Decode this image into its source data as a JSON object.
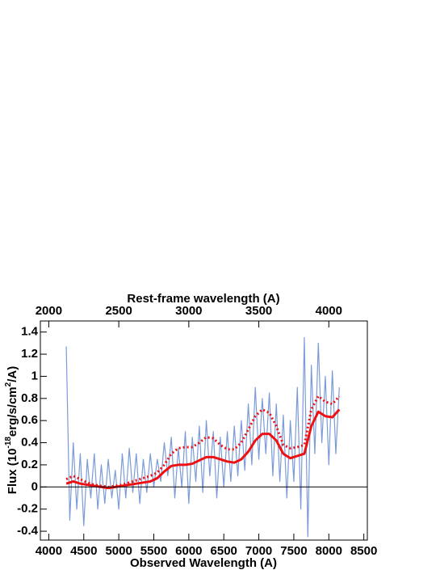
{
  "chart_data": {
    "type": "line",
    "xlabel": "Observed Wavelength (A)",
    "ylabel_parts": [
      "Flux (10",
      "-18",
      "erg/s/cm",
      "2",
      "/A)"
    ],
    "x2label": "Rest-frame wavelength (A)",
    "xlim": [
      3880,
      8550
    ],
    "xticks": [
      4000,
      4500,
      5000,
      5500,
      6000,
      6500,
      7000,
      7500,
      8000,
      8500
    ],
    "x2lim": [
      1940,
      4275
    ],
    "x2ticks": [
      2000,
      2500,
      3000,
      3500,
      4000
    ],
    "ylim": [
      -0.48,
      1.5
    ],
    "yticks": [
      -0.4,
      -0.2,
      0,
      0.2,
      0.4,
      0.6,
      0.8,
      1,
      1.2,
      1.4
    ],
    "zero_line": 0,
    "series": [
      {
        "color": "#7b9bd8",
        "style": "solid",
        "x": [
          4250,
          4300,
          4350,
          4400,
          4450,
          4500,
          4550,
          4600,
          4650,
          4700,
          4750,
          4800,
          4850,
          4900,
          4950,
          5000,
          5050,
          5100,
          5150,
          5200,
          5250,
          5300,
          5350,
          5400,
          5450,
          5500,
          5550,
          5600,
          5650,
          5700,
          5750,
          5800,
          5850,
          5900,
          5950,
          6000,
          6050,
          6100,
          6150,
          6200,
          6250,
          6300,
          6350,
          6400,
          6450,
          6500,
          6550,
          6600,
          6650,
          6700,
          6750,
          6800,
          6850,
          6900,
          6950,
          7000,
          7050,
          7100,
          7150,
          7200,
          7250,
          7300,
          7350,
          7400,
          7450,
          7500,
          7550,
          7600,
          7650,
          7700,
          7750,
          7800,
          7850,
          7900,
          7950,
          8000,
          8050,
          8100,
          8150
        ],
        "values": [
          1.27,
          -0.3,
          0.4,
          -0.2,
          0.3,
          -0.35,
          0.25,
          -0.1,
          0.3,
          -0.2,
          0.2,
          -0.15,
          0.25,
          -0.1,
          0.15,
          -0.2,
          0.3,
          -0.1,
          0.35,
          -0.05,
          0.3,
          -0.15,
          0.25,
          -0.05,
          0.3,
          0.0,
          0.25,
          0.05,
          0.4,
          0.1,
          0.45,
          -0.1,
          0.35,
          0.0,
          0.5,
          -0.15,
          0.45,
          0.05,
          0.55,
          -0.05,
          0.6,
          0.1,
          0.5,
          -0.1,
          0.45,
          0.0,
          0.5,
          0.05,
          0.55,
          0.1,
          0.6,
          0.15,
          0.75,
          0.2,
          0.9,
          0.25,
          0.8,
          0.3,
          0.85,
          0.1,
          0.75,
          0.05,
          0.65,
          -0.1,
          0.6,
          0.05,
          0.9,
          -0.2,
          1.35,
          -0.45,
          1.1,
          0.3,
          1.3,
          0.4,
          1.0,
          0.2,
          1.05,
          0.3,
          0.9
        ]
      },
      {
        "color": "#ee1111",
        "style": "solid",
        "x": [
          4250,
          4350,
          4450,
          4550,
          4650,
          4750,
          4850,
          4950,
          5050,
          5150,
          5250,
          5350,
          5450,
          5550,
          5650,
          5750,
          5850,
          5950,
          6050,
          6150,
          6250,
          6350,
          6450,
          6550,
          6650,
          6750,
          6850,
          6950,
          7050,
          7150,
          7250,
          7350,
          7450,
          7550,
          7650,
          7750,
          7850,
          7950,
          8050,
          8150
        ],
        "values": [
          0.03,
          0.05,
          0.03,
          0.02,
          0.01,
          0.0,
          -0.01,
          0.0,
          0.01,
          0.02,
          0.03,
          0.04,
          0.05,
          0.08,
          0.14,
          0.19,
          0.2,
          0.2,
          0.21,
          0.24,
          0.27,
          0.27,
          0.25,
          0.23,
          0.22,
          0.25,
          0.32,
          0.42,
          0.48,
          0.48,
          0.42,
          0.3,
          0.26,
          0.28,
          0.3,
          0.55,
          0.68,
          0.64,
          0.63,
          0.7
        ]
      },
      {
        "color": "#ee1111",
        "style": "dotted",
        "x": [
          4250,
          4350,
          4450,
          4550,
          4650,
          4750,
          4850,
          4950,
          5050,
          5150,
          5250,
          5350,
          5450,
          5550,
          5650,
          5750,
          5850,
          5950,
          6050,
          6150,
          6250,
          6350,
          6450,
          6550,
          6650,
          6750,
          6850,
          6950,
          7050,
          7150,
          7250,
          7350,
          7450,
          7550,
          7650,
          7750,
          7850,
          7950,
          8050,
          8150
        ],
        "values": [
          0.07,
          0.1,
          0.07,
          0.04,
          0.02,
          0.01,
          0.0,
          0.01,
          0.02,
          0.04,
          0.06,
          0.08,
          0.1,
          0.13,
          0.2,
          0.3,
          0.35,
          0.36,
          0.36,
          0.4,
          0.45,
          0.44,
          0.38,
          0.34,
          0.34,
          0.4,
          0.52,
          0.64,
          0.7,
          0.67,
          0.55,
          0.38,
          0.35,
          0.36,
          0.38,
          0.7,
          0.82,
          0.77,
          0.75,
          0.82
        ]
      }
    ]
  }
}
